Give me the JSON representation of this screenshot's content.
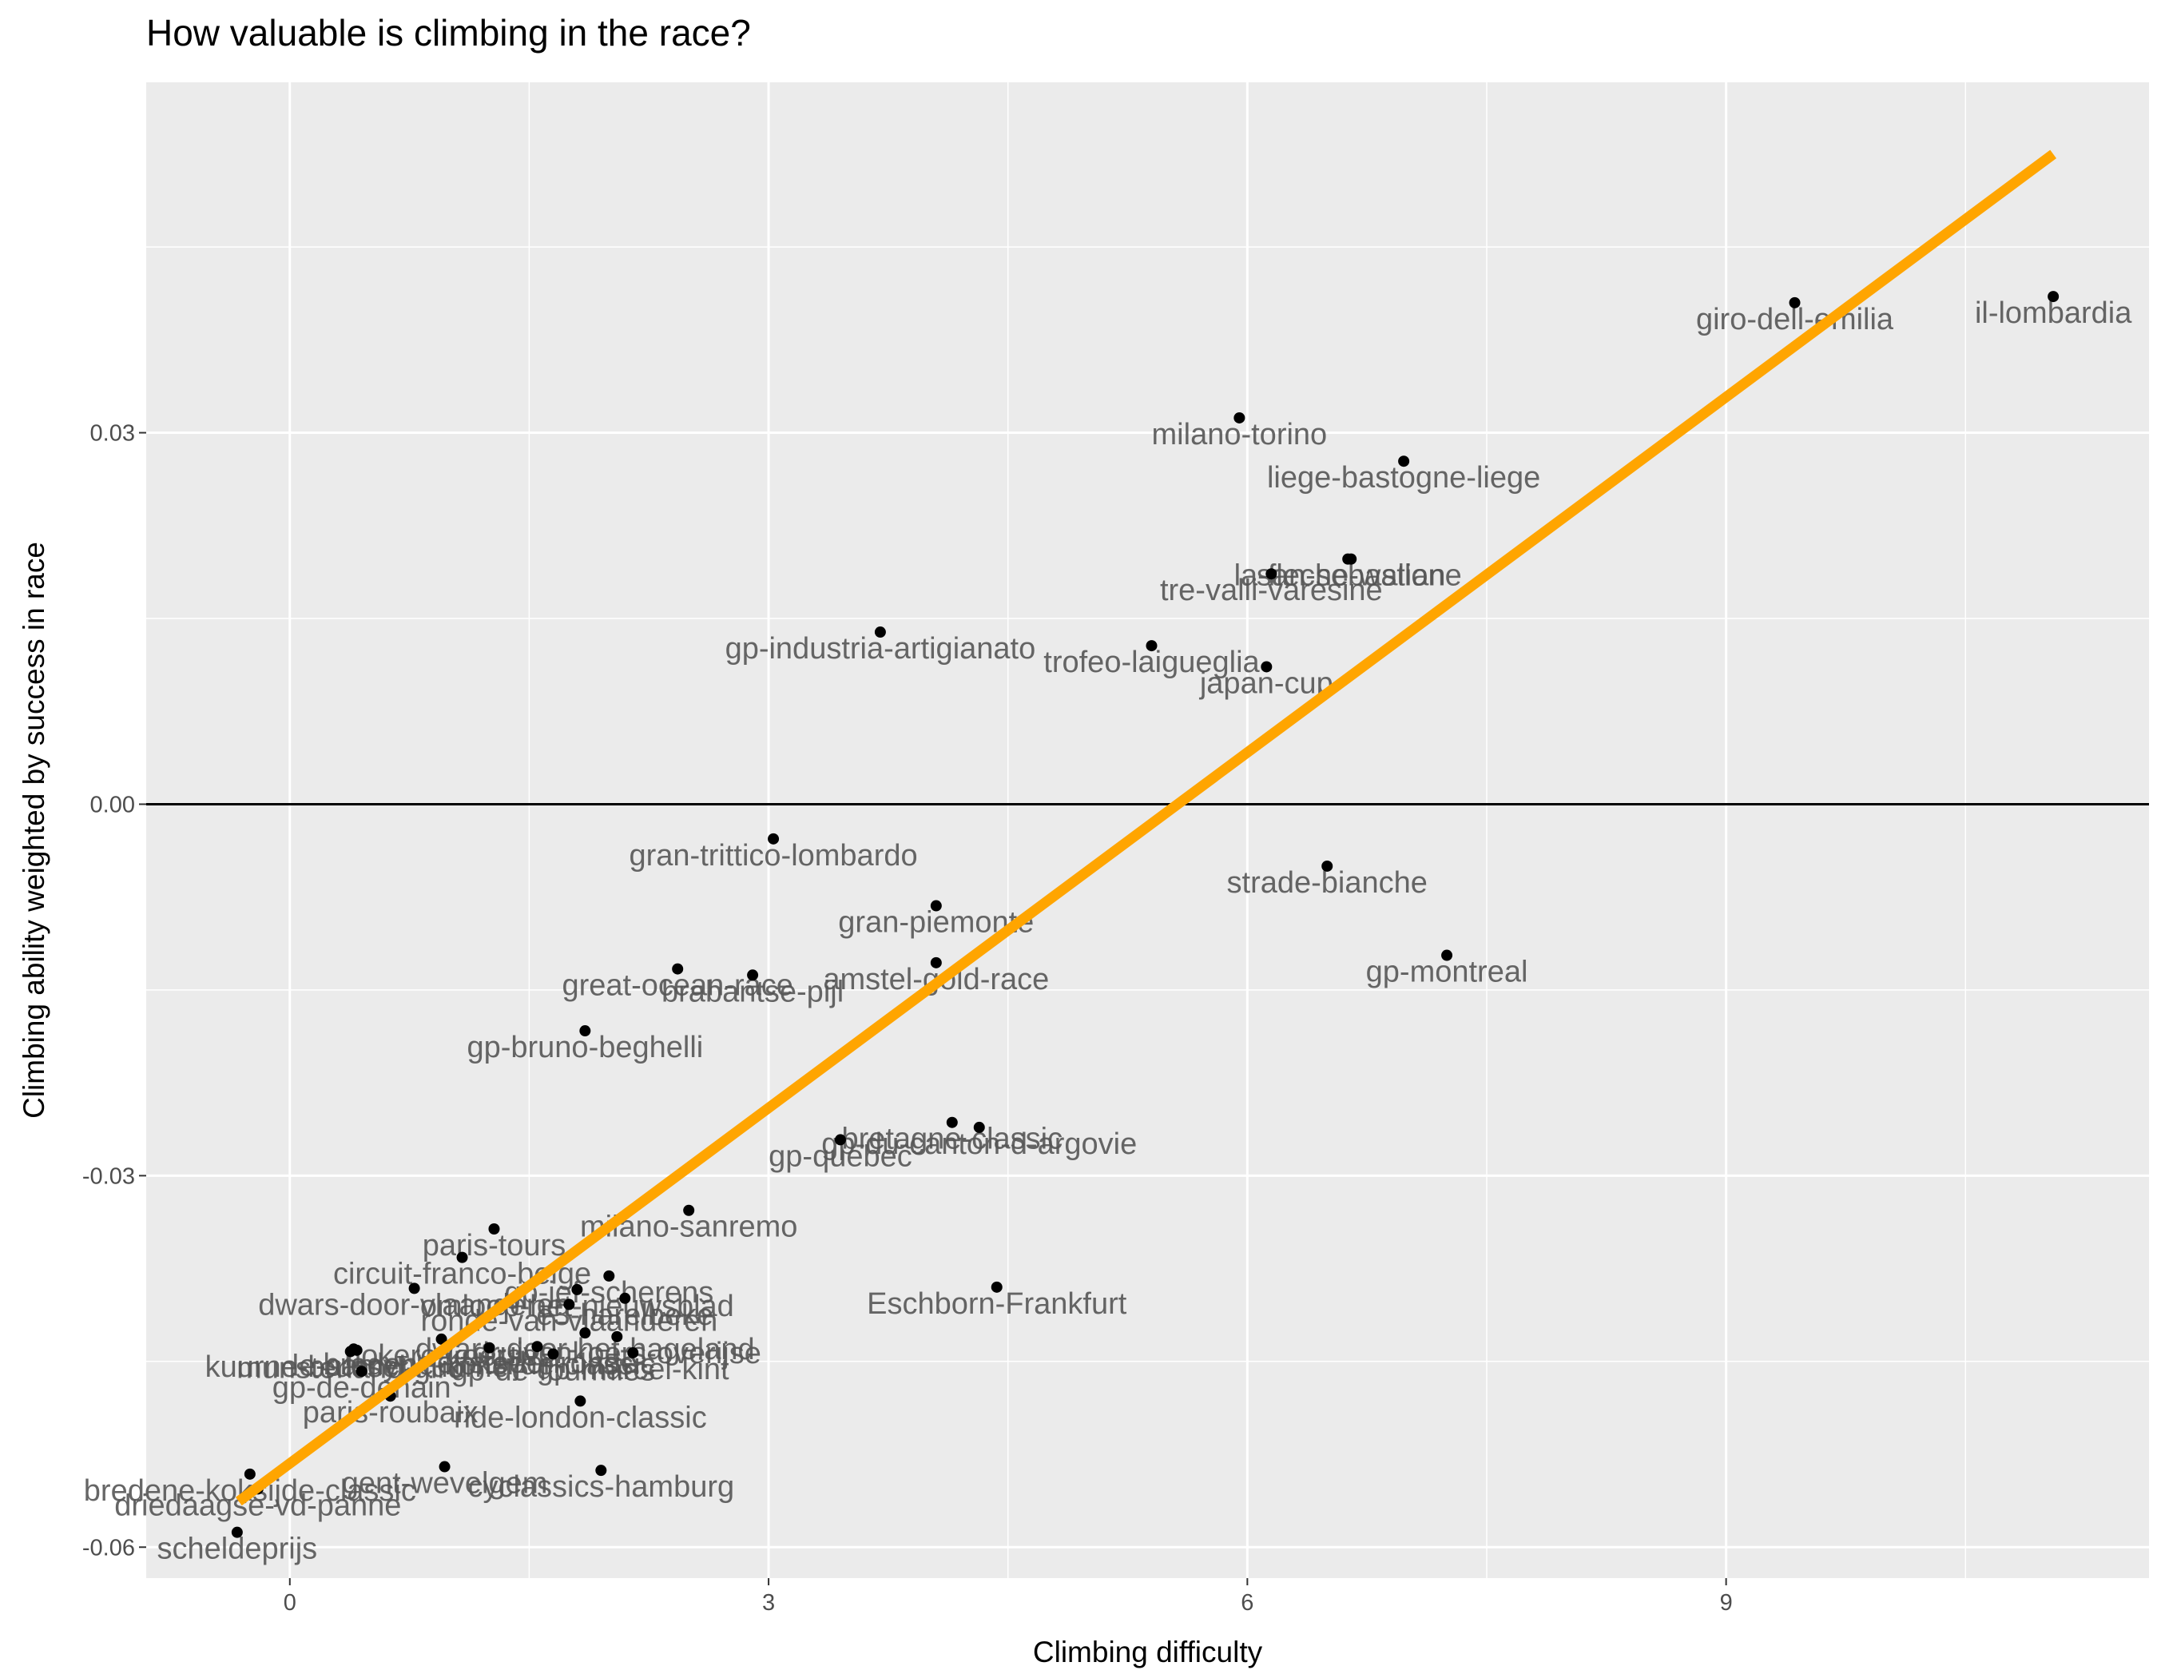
{
  "chart_data": {
    "type": "scatter",
    "title": "How valuable is climbing in the race?",
    "xlabel": "Climbing difficulty",
    "ylabel": "Climbing ability weighted by success in race",
    "xlim": [
      -0.9,
      11.65
    ],
    "ylim": [
      -0.0625,
      0.0583
    ],
    "x_ticks": [
      0,
      3,
      6,
      9
    ],
    "x_tick_labels": [
      "0",
      "3",
      "6",
      "9"
    ],
    "y_ticks": [
      -0.06,
      -0.03,
      0.0,
      0.03
    ],
    "y_tick_labels": [
      "-0.06",
      "-0.03",
      "0.00",
      "0.03"
    ],
    "grid": true,
    "background": "#ebebeb",
    "zero_line": 0.0,
    "trend_line": {
      "x": [
        -0.32,
        11.05
      ],
      "y": [
        -0.0563,
        0.0525
      ],
      "color": "#ffa500"
    },
    "point_color": "#000000",
    "points": [
      {
        "label": "il-lombardia",
        "x": 11.05,
        "y": 0.041
      },
      {
        "label": "giro-dell-emilia",
        "x": 9.43,
        "y": 0.0405
      },
      {
        "label": "milano-torino",
        "x": 5.95,
        "y": 0.0312
      },
      {
        "label": "liege-bastogne-liege",
        "x": 6.98,
        "y": 0.0277
      },
      {
        "label": "la-fleche-wallone",
        "x": 6.63,
        "y": 0.0198
      },
      {
        "label": "san-sebastian",
        "x": 6.65,
        "y": 0.0198
      },
      {
        "label": "tre-valli-varesine",
        "x": 6.15,
        "y": 0.0186
      },
      {
        "label": "gp-industria-artigianato",
        "x": 3.7,
        "y": 0.0139
      },
      {
        "label": "trofeo-laigueglia",
        "x": 5.4,
        "y": 0.0128
      },
      {
        "label": "japan-cup",
        "x": 6.12,
        "y": 0.0111
      },
      {
        "label": "gran-trittico-lombardo",
        "x": 3.03,
        "y": -0.0028
      },
      {
        "label": "strade-bianche",
        "x": 6.5,
        "y": -0.005
      },
      {
        "label": "gran-piemonte",
        "x": 4.05,
        "y": -0.0082
      },
      {
        "label": "gp-montreal",
        "x": 7.25,
        "y": -0.0122
      },
      {
        "label": "amstel-gold-race",
        "x": 4.05,
        "y": -0.0128
      },
      {
        "label": "great-ocean-race",
        "x": 2.43,
        "y": -0.0133
      },
      {
        "label": "brabantse-pijl",
        "x": 2.9,
        "y": -0.0138
      },
      {
        "label": "gp-bruno-beghelli",
        "x": 1.85,
        "y": -0.0183
      },
      {
        "label": "bretagne-classic",
        "x": 4.15,
        "y": -0.0257
      },
      {
        "label": "gp-du-canton-d-argovie",
        "x": 4.32,
        "y": -0.0261
      },
      {
        "label": "gp-quebec",
        "x": 3.45,
        "y": -0.0271
      },
      {
        "label": "milano-sanremo",
        "x": 2.5,
        "y": -0.0328
      },
      {
        "label": "paris-tours",
        "x": 1.28,
        "y": -0.0343
      },
      {
        "label": "circuit-franco-belge",
        "x": 1.08,
        "y": -0.0366
      },
      {
        "label": "dwars-door-vlaanderen",
        "x": 0.78,
        "y": -0.0391
      },
      {
        "label": "omloop-het-nieuwsblad",
        "x": 1.8,
        "y": -0.0392
      },
      {
        "label": "gp-jef-scherens",
        "x": 2.0,
        "y": -0.0381
      },
      {
        "label": "e3-harelbeke",
        "x": 2.1,
        "y": -0.0399
      },
      {
        "label": "ronde-van-vlaanderen",
        "x": 1.75,
        "y": -0.0404
      },
      {
        "label": "dwars-door-het-hageland",
        "x": 1.85,
        "y": -0.0427
      },
      {
        "label": "druivenkoers-overijse",
        "x": 2.05,
        "y": -0.043
      },
      {
        "label": "nokere-koerse",
        "x": 0.95,
        "y": -0.0432
      },
      {
        "label": "bredene-koksijde-classic",
        "x": 1.25,
        "y": -0.0439
      },
      {
        "label": "elfstedenronde",
        "x": 1.55,
        "y": -0.0438
      },
      {
        "label": "le-samyn",
        "x": 0.4,
        "y": -0.044
      },
      {
        "label": "kuurne-brussel-kuurne",
        "x": 0.42,
        "y": -0.0441
      },
      {
        "label": "gp-de-fourmies",
        "x": 1.65,
        "y": -0.0444
      },
      {
        "label": "gp-marcel-kint",
        "x": 2.15,
        "y": -0.0443
      },
      {
        "label": "munsterland-giro",
        "x": 0.38,
        "y": -0.0442
      },
      {
        "label": "gp-de-denain",
        "x": 0.45,
        "y": -0.0458
      },
      {
        "label": "paris-roubaix",
        "x": 0.63,
        "y": -0.0478
      },
      {
        "label": "ride-london-classic",
        "x": 1.82,
        "y": -0.0482
      },
      {
        "label": "gent-wevelgem",
        "x": 0.97,
        "y": -0.0535
      },
      {
        "label": "cyclassics-hamburg",
        "x": 1.95,
        "y": -0.0538
      },
      {
        "label": "bredene-koksijde-classic",
        "x": -0.25,
        "y": -0.0541
      },
      {
        "label": "driedaagse-vd-panne",
        "x": -0.2,
        "y": -0.0553
      },
      {
        "label": "scheldeprijs",
        "x": -0.33,
        "y": -0.0588
      },
      {
        "label": "Eschborn-Frankfurt",
        "x": 4.43,
        "y": -0.039
      }
    ]
  }
}
